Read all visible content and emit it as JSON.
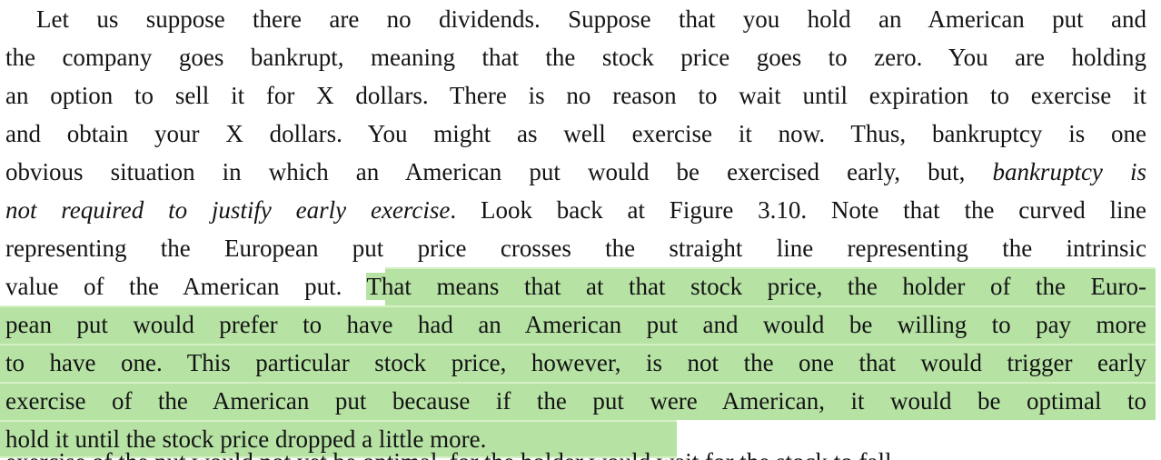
{
  "colors": {
    "background": "#ffffff",
    "text": "#141414",
    "highlight": "#b6e2a4",
    "highlight_seam": "#d6f0c6"
  },
  "text_block": {
    "lines": [
      {
        "indent": true,
        "justify": true,
        "highlight": "none",
        "segments": [
          {
            "text": "Let us suppose there are no dividends. Suppose that you hold an American put and"
          }
        ]
      },
      {
        "indent": false,
        "justify": true,
        "highlight": "none",
        "segments": [
          {
            "text": "the company goes bankrupt, meaning that the stock price goes to zero. You are holding"
          }
        ]
      },
      {
        "indent": false,
        "justify": true,
        "highlight": "none",
        "segments": [
          {
            "text": "an option to sell it for X dollars. There is no reason to wait until expiration to exercise it"
          }
        ]
      },
      {
        "indent": false,
        "justify": true,
        "highlight": "none",
        "segments": [
          {
            "text": "and obtain your X dollars. You might as well exercise it now. Thus, bankruptcy is one"
          }
        ]
      },
      {
        "indent": false,
        "justify": true,
        "highlight": "none",
        "segments": [
          {
            "text": "obvious situation in which an American put would be exercised early, but, "
          },
          {
            "text": "bankruptcy is",
            "italic": true
          }
        ]
      },
      {
        "indent": false,
        "justify": true,
        "highlight": "none",
        "segments": [
          {
            "text": "not required to justify early exercise",
            "italic": true
          },
          {
            "text": ". Look back at Figure 3.10. Note that the curved line"
          }
        ]
      },
      {
        "indent": false,
        "justify": true,
        "highlight": "none",
        "segments": [
          {
            "text": "representing the European put price crosses the straight line representing the intrinsic"
          }
        ]
      },
      {
        "indent": false,
        "justify": true,
        "highlight": {
          "from": 424
        },
        "segments": [
          {
            "text": "value of the American put. "
          },
          {
            "text": "That means that at that stock price, the holder of the Euro-",
            "hl": true
          }
        ]
      },
      {
        "indent": false,
        "justify": true,
        "highlight": "full",
        "segments": [
          {
            "text": "pean put would prefer to have had an American put and would be willing to pay more",
            "hl": true
          }
        ]
      },
      {
        "indent": false,
        "justify": true,
        "highlight": "full",
        "segments": [
          {
            "text": "to have one. This particular stock price, however, is not the one that would trigger early",
            "hl": true
          }
        ]
      },
      {
        "indent": false,
        "justify": true,
        "highlight": "full",
        "segments": [
          {
            "text": "exercise of the American put because if the put were American, it would be optimal to",
            "hl": true
          }
        ]
      },
      {
        "indent": false,
        "justify": false,
        "highlight": {
          "to": 745,
          "seamBottom": true
        },
        "segments": [
          {
            "text": "hold it until the stock price dropped a little more.",
            "hl": true
          }
        ]
      }
    ],
    "cutoff_line": {
      "text": "exercise of the put would not yet be optimal, for the holder would wait for the stock to fall"
    }
  }
}
